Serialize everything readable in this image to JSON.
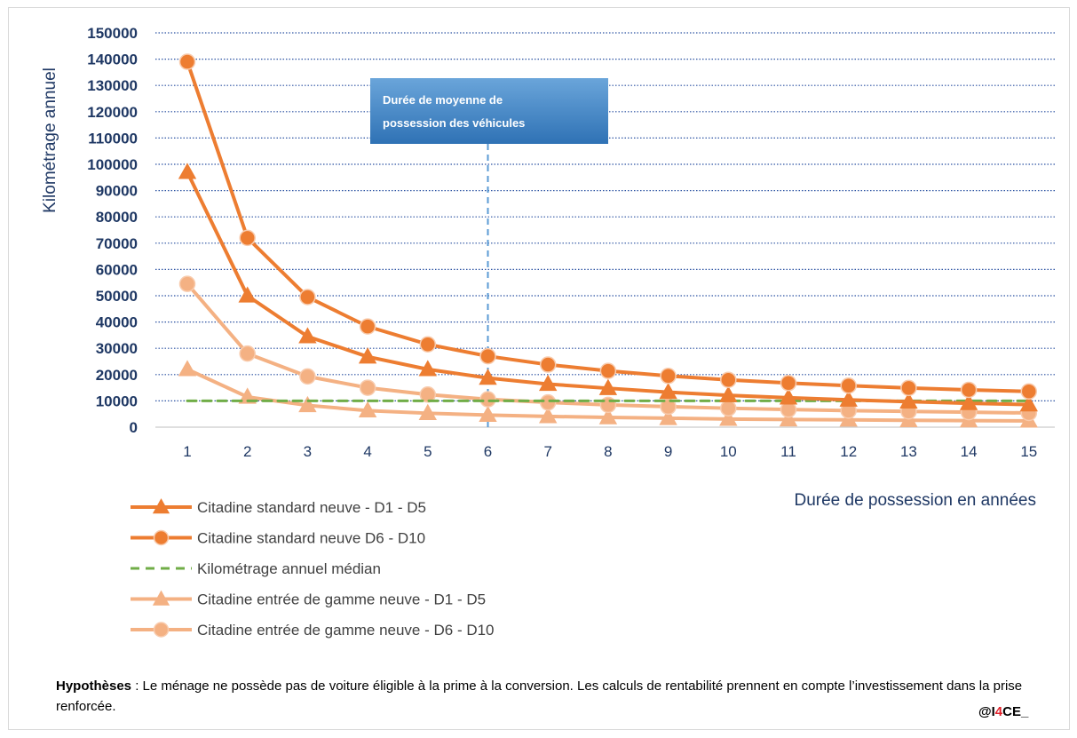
{
  "colors": {
    "dark_orange": "#ed7d31",
    "light_orange": "#f4b183",
    "green": "#70ad47",
    "grid": "#2e54a3",
    "axis_text": "#1f3864",
    "callout_top": "#5b9bd5",
    "callout_bottom": "#2e75b6",
    "vline": "#5b9bd5"
  },
  "chart_data": {
    "type": "line",
    "title": "",
    "xlabel": "Durée de possession en années",
    "ylabel": "Kilométrage annuel",
    "x": [
      1,
      2,
      3,
      4,
      5,
      6,
      7,
      8,
      9,
      10,
      11,
      12,
      13,
      14,
      15
    ],
    "ylim": [
      0,
      150000
    ],
    "yticks": [
      "0",
      "10000",
      "20000",
      "30000",
      "40000",
      "50000",
      "60000",
      "70000",
      "80000",
      "90000",
      "100000",
      "110000",
      "120000",
      "130000",
      "140000",
      "150000"
    ],
    "grid": true,
    "legend_position": "bottom-left",
    "series": [
      {
        "name": "Citadine standard neuve - D1 - D5",
        "marker": "triangle",
        "color": "dark_orange",
        "dash": false,
        "values": [
          97000,
          50000,
          34500,
          26800,
          22000,
          18700,
          16400,
          14800,
          13300,
          12100,
          11200,
          10400,
          9700,
          9100,
          8600
        ]
      },
      {
        "name": "Citadine standard neuve D6 - D10",
        "marker": "circle",
        "color": "dark_orange",
        "dash": false,
        "values": [
          139000,
          72000,
          49500,
          38300,
          31500,
          27000,
          23800,
          21400,
          19500,
          18000,
          16800,
          15800,
          14900,
          14200,
          13600
        ]
      },
      {
        "name": "Kilométrage annuel médian",
        "marker": "none",
        "color": "green",
        "dash": true,
        "values": [
          10000,
          10000,
          10000,
          10000,
          10000,
          10000,
          10000,
          10000,
          10000,
          10000,
          10000,
          10000,
          10000,
          10000,
          10000
        ]
      },
      {
        "name": "Citadine entrée de gamme neuve - D1 - D5",
        "marker": "triangle",
        "color": "light_orange",
        "dash": false,
        "values": [
          22000,
          11500,
          8300,
          6300,
          5300,
          4600,
          4100,
          3700,
          3400,
          3100,
          2900,
          2800,
          2600,
          2500,
          2400
        ]
      },
      {
        "name": "Citadine entrée de gamme neuve - D6 - D10",
        "marker": "circle",
        "color": "light_orange",
        "dash": false,
        "values": [
          54500,
          28000,
          19300,
          15000,
          12400,
          10600,
          9400,
          8500,
          7800,
          7200,
          6700,
          6300,
          6000,
          5700,
          5400
        ]
      }
    ],
    "annotation": {
      "x": 6,
      "text_line1": "Durée de moyenne de",
      "text_line2": "possession des véhicules"
    }
  },
  "note": {
    "bold": "Hypothèses",
    "text": " : Le ménage ne possède pas de voiture éligible à la prime à la conversion. Les calculs de rentabilité prennent en compte l’investissement dans la prise renforcée."
  },
  "signature": {
    "prefix": "@I",
    "highlight": "4",
    "suffix": "CE_"
  }
}
